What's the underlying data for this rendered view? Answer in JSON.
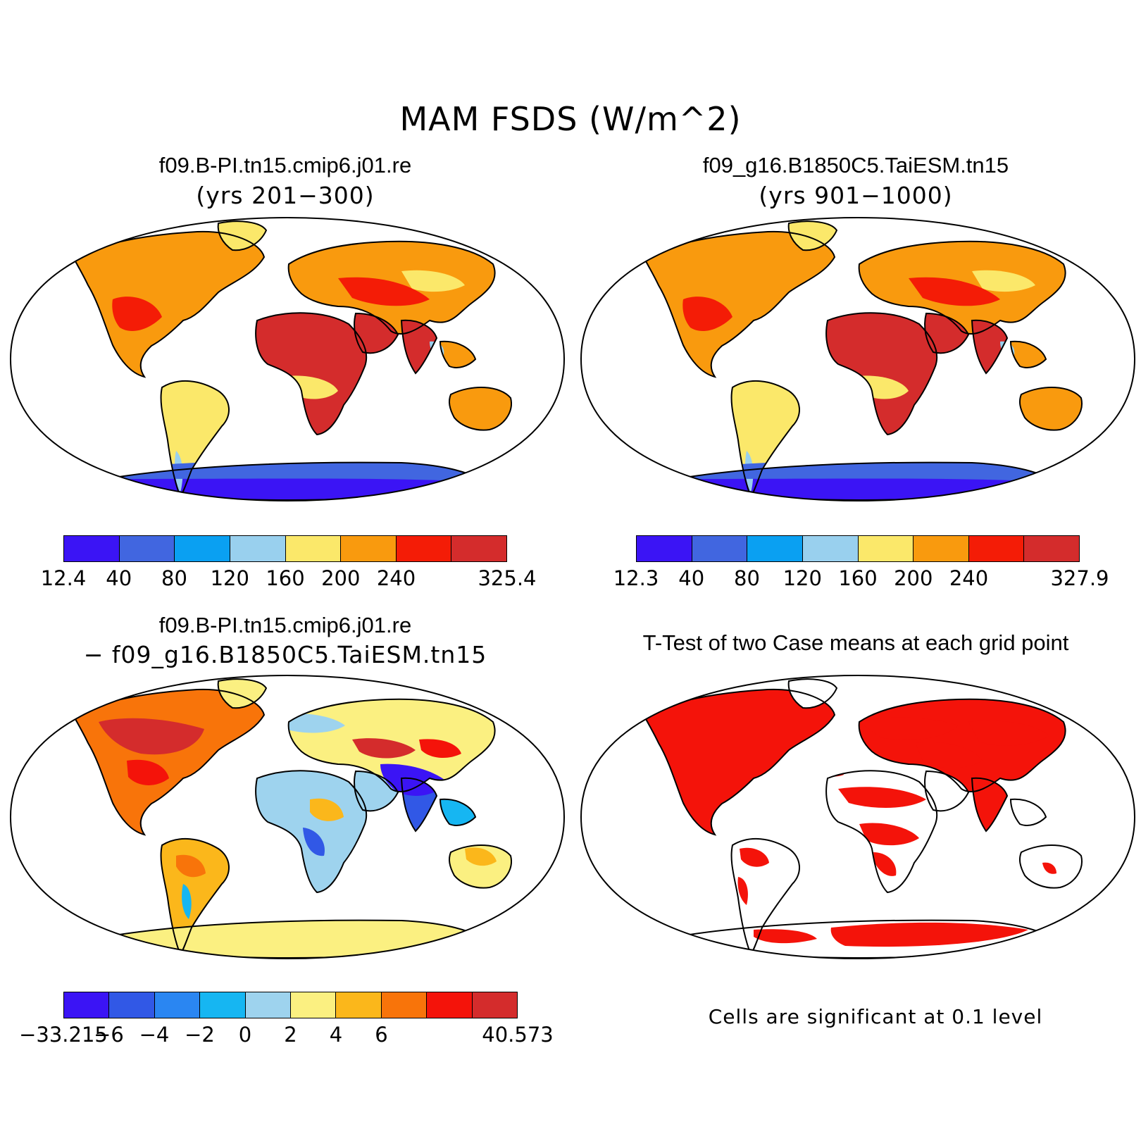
{
  "title": "MAM FSDS (W/m^2)",
  "panels": {
    "tl": {
      "title": "f09.B-PI.tn15.cmip6.j01.re",
      "subtitle": "(yrs 201−300)",
      "colorbar": {
        "colors": [
          "#3b14f5",
          "#4166e0",
          "#0aa0f2",
          "#99d0ee",
          "#fbe86a",
          "#f99a0e",
          "#f41c06",
          "#d42c2c"
        ],
        "ticks": [
          "12.4",
          "40",
          "80",
          "120",
          "160",
          "200",
          "240",
          "325.4"
        ]
      }
    },
    "tr": {
      "title": "f09_g16.B1850C5.TaiESM.tn15",
      "subtitle": "(yrs 901−1000)",
      "colorbar": {
        "colors": [
          "#3b14f5",
          "#4166e0",
          "#0aa0f2",
          "#99d0ee",
          "#fbe86a",
          "#f99a0e",
          "#f41c06",
          "#d42c2c"
        ],
        "ticks": [
          "12.3",
          "40",
          "80",
          "120",
          "160",
          "200",
          "240",
          "327.9"
        ]
      }
    },
    "bl": {
      "title": "f09.B-PI.tn15.cmip6.j01.re",
      "subtitle": "− f09_g16.B1850C5.TaiESM.tn15",
      "colorbar": {
        "colors": [
          "#3b14f5",
          "#3158e6",
          "#2a86f2",
          "#16b6f2",
          "#9ed3ee",
          "#fbf081",
          "#fbb71b",
          "#f8740a",
          "#f4130a",
          "#d42c2c"
        ],
        "ticks": [
          "−33.215",
          "−6",
          "−4",
          "−2",
          "0",
          "2",
          "4",
          "6",
          "40.573"
        ]
      }
    },
    "br": {
      "title": "T-Test of two Case means at each grid point",
      "footnote": "Cells are significant at 0.1 level",
      "sig_color": "#f4130a"
    }
  }
}
